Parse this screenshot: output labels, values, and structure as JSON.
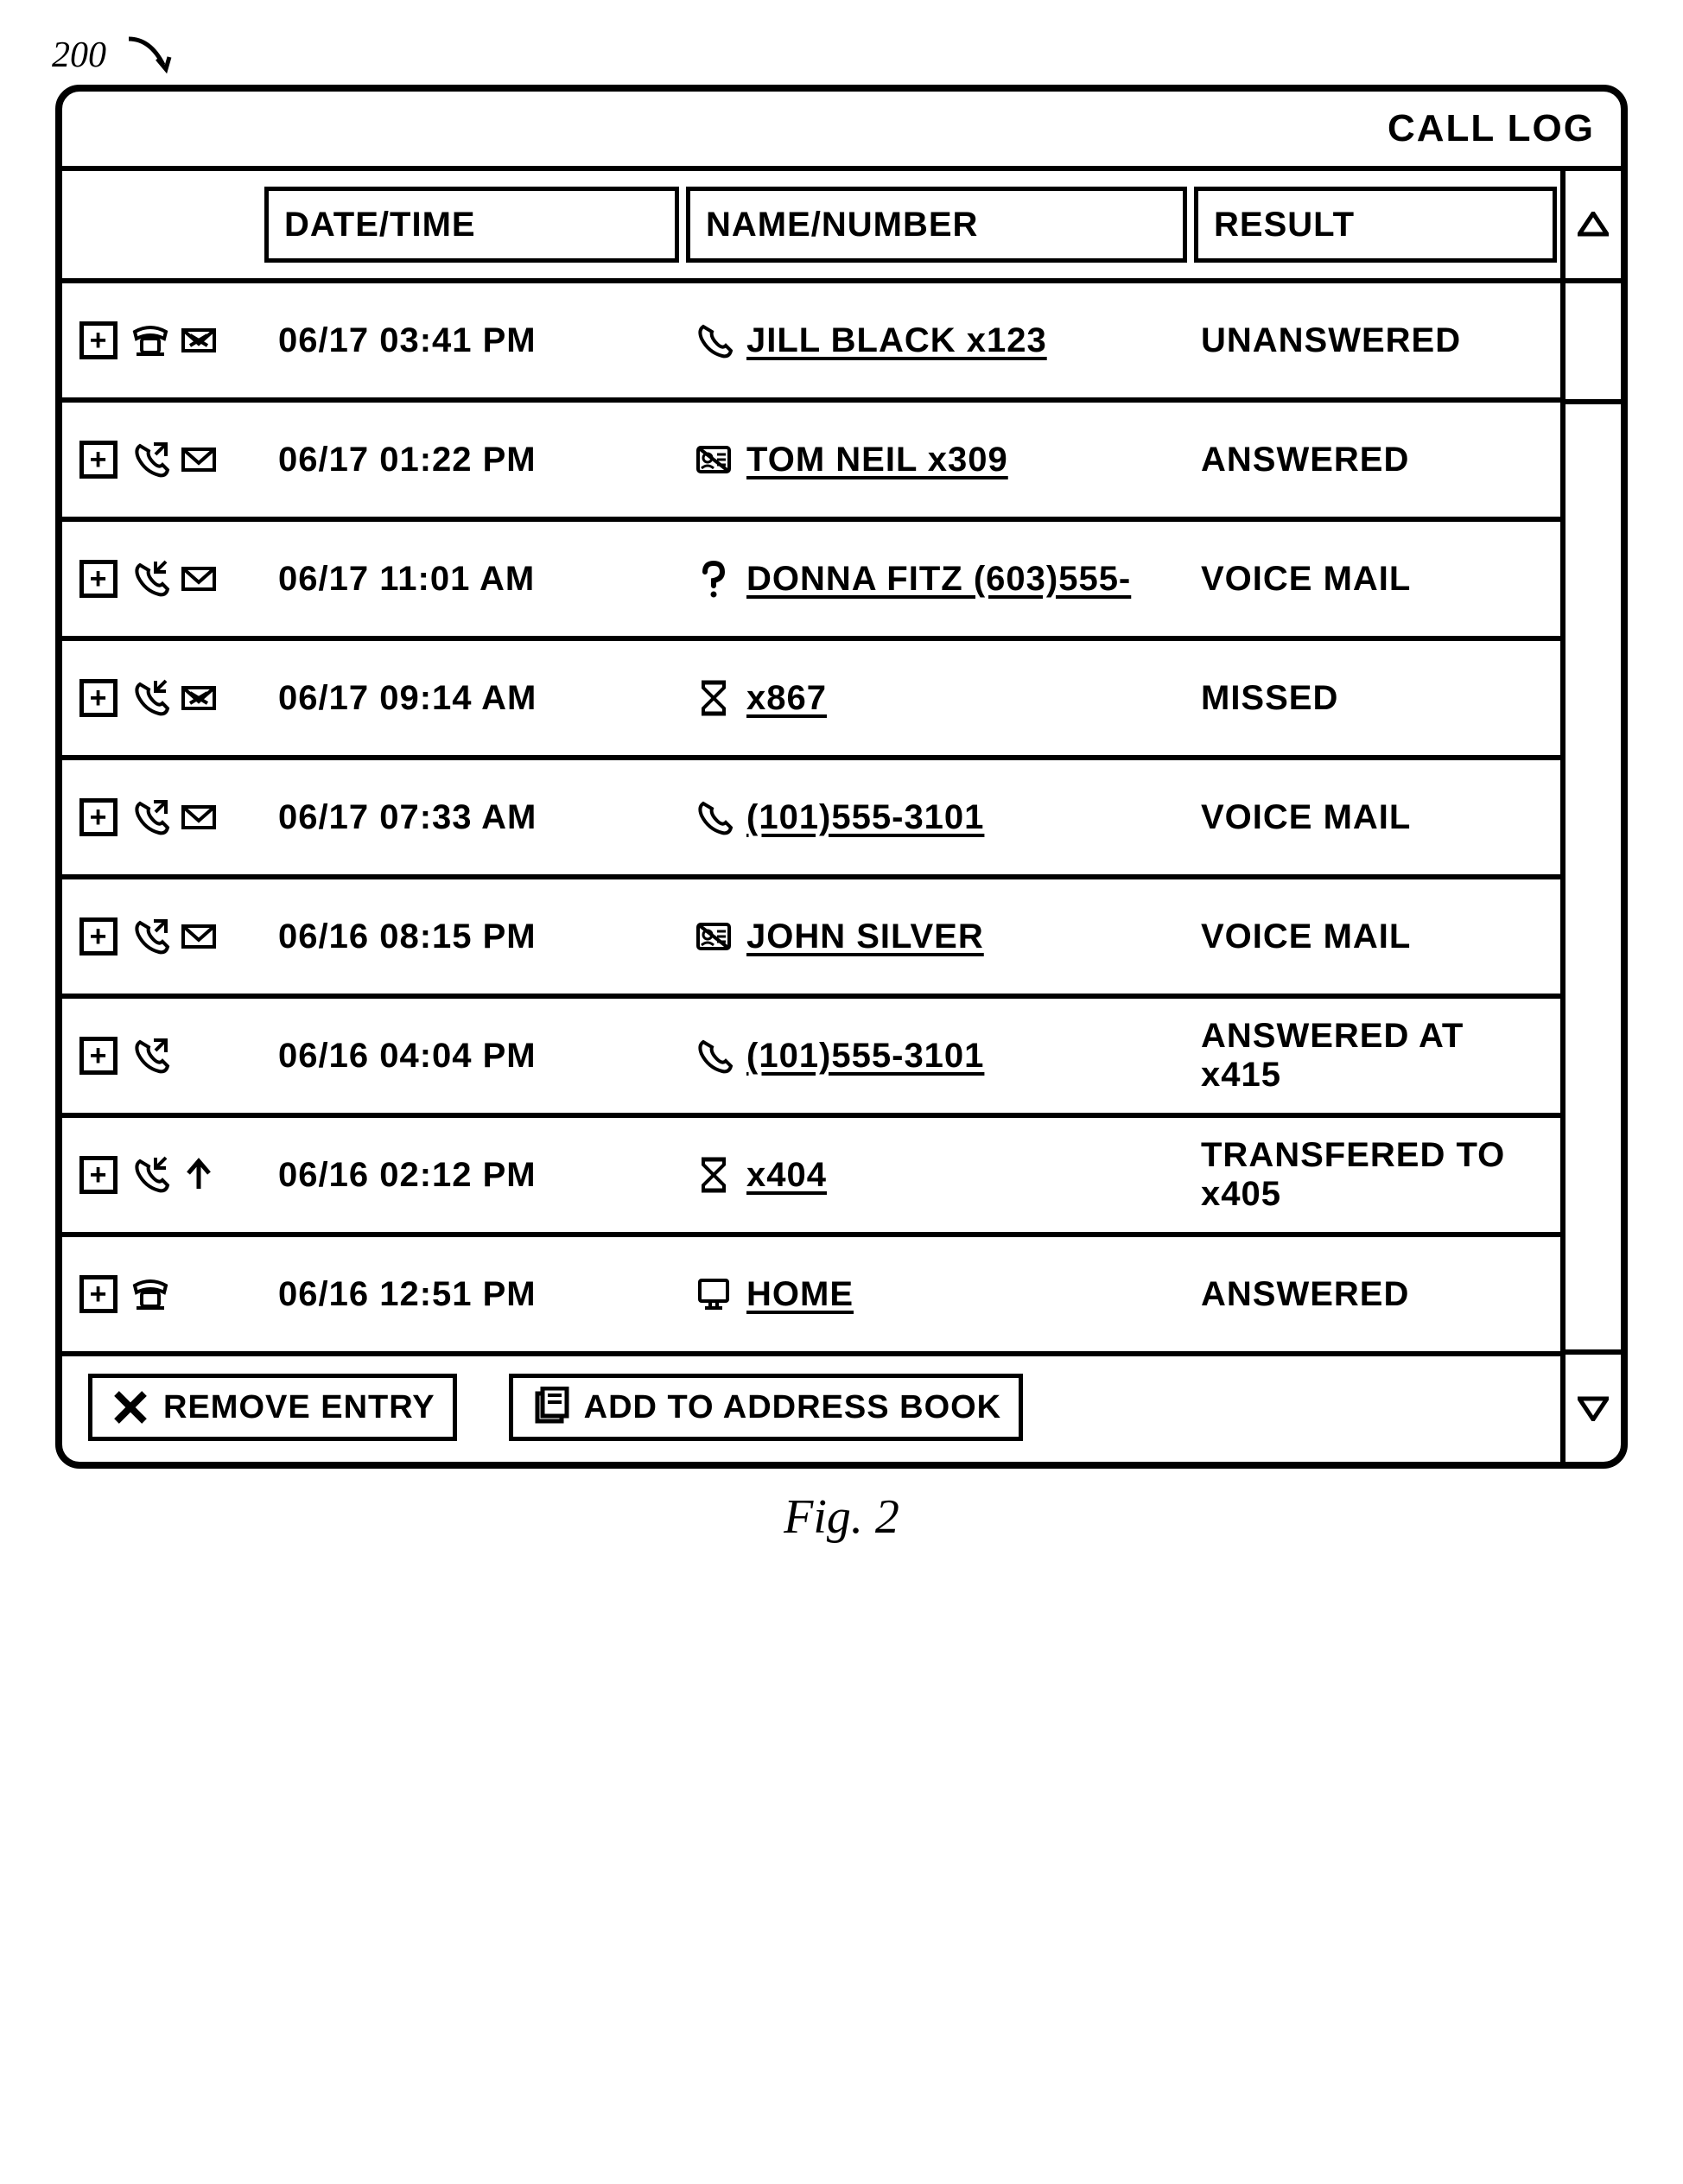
{
  "figure_ref": "200",
  "title": "CALL LOG",
  "caption": "Fig. 2",
  "headers": {
    "date": "DATE/TIME",
    "name": "NAME/NUMBER",
    "result": "RESULT"
  },
  "rows": [
    {
      "icons": [
        "phone-desk",
        "mail-x"
      ],
      "date": "06/17  03:41 PM",
      "name_icon": "handset",
      "name": "JILL BLACK  x123",
      "result": "UNANSWERED"
    },
    {
      "icons": [
        "handset-out",
        "mail"
      ],
      "date": "06/17  01:22 PM",
      "name_icon": "card",
      "name": "TOM NEIL  x309",
      "result": "ANSWERED"
    },
    {
      "icons": [
        "handset-in",
        "mail"
      ],
      "date": "06/17  11:01 AM",
      "name_icon": "question",
      "name": "DONNA FITZ (603)555-",
      "result": "VOICE MAIL"
    },
    {
      "icons": [
        "handset-in",
        "mail-x"
      ],
      "date": "06/17  09:14 AM",
      "name_icon": "hourglass",
      "name": "x867",
      "result": "MISSED"
    },
    {
      "icons": [
        "handset-out",
        "mail"
      ],
      "date": "06/17  07:33 AM",
      "name_icon": "handset",
      "name": "(101)555-3101",
      "result": "VOICE MAIL"
    },
    {
      "icons": [
        "handset-out",
        "mail"
      ],
      "date": "06/16  08:15 PM",
      "name_icon": "card",
      "name": "JOHN SILVER",
      "result": "VOICE MAIL"
    },
    {
      "icons": [
        "handset-out"
      ],
      "date": "06/16  04:04 PM",
      "name_icon": "handset",
      "name": "(101)555-3101",
      "result": "ANSWERED AT x415"
    },
    {
      "icons": [
        "handset-in",
        "arrow-up"
      ],
      "date": "06/16  02:12 PM",
      "name_icon": "hourglass",
      "name": "x404",
      "result": "TRANSFERED TO x405"
    },
    {
      "icons": [
        "phone-desk"
      ],
      "date": "06/16  12:51 PM",
      "name_icon": "monitor",
      "name": "HOME",
      "result": "ANSWERED"
    }
  ],
  "footer": {
    "remove": "REMOVE ENTRY",
    "add": "ADD TO ADDRESS BOOK"
  }
}
